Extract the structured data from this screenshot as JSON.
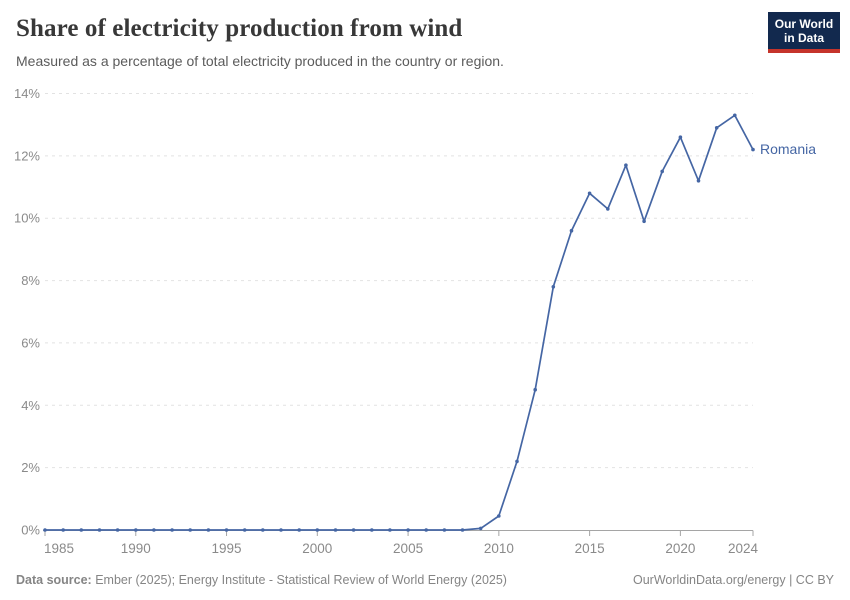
{
  "header": {
    "title": "Share of electricity production from wind",
    "subtitle": "Measured as a percentage of total electricity produced in the country or region."
  },
  "logo": {
    "line1": "Our World",
    "line2": "in Data",
    "bg_color": "#12294e",
    "accent_color": "#c5342b"
  },
  "chart_data": {
    "type": "line",
    "title": "Share of electricity production from wind",
    "xlabel": "",
    "ylabel": "",
    "xlim": [
      1985,
      2024
    ],
    "ylim": [
      0,
      14
    ],
    "grid": true,
    "y_ticks": [
      0,
      2,
      4,
      6,
      8,
      10,
      12,
      14
    ],
    "y_tick_labels": [
      "0%",
      "2%",
      "4%",
      "6%",
      "8%",
      "10%",
      "12%",
      "14%"
    ],
    "x_ticks": [
      1985,
      1990,
      1995,
      2000,
      2005,
      2010,
      2015,
      2020,
      2024
    ],
    "x_tick_labels": [
      "1985",
      "1990",
      "1995",
      "2000",
      "2005",
      "2010",
      "2015",
      "2020",
      "2024"
    ],
    "x": [
      1985,
      1986,
      1987,
      1988,
      1989,
      1990,
      1991,
      1992,
      1993,
      1994,
      1995,
      1996,
      1997,
      1998,
      1999,
      2000,
      2001,
      2002,
      2003,
      2004,
      2005,
      2006,
      2007,
      2008,
      2009,
      2010,
      2011,
      2012,
      2013,
      2014,
      2015,
      2016,
      2017,
      2018,
      2019,
      2020,
      2021,
      2022,
      2023,
      2024
    ],
    "series": [
      {
        "name": "Romania",
        "color": "#4566a4",
        "values": [
          0,
          0,
          0,
          0,
          0,
          0,
          0,
          0,
          0,
          0,
          0,
          0,
          0,
          0,
          0,
          0,
          0,
          0,
          0,
          0,
          0,
          0,
          0,
          0,
          0.05,
          0.45,
          2.2,
          4.5,
          7.8,
          9.6,
          10.8,
          10.3,
          11.7,
          9.9,
          11.5,
          12.6,
          11.2,
          12.9,
          13.3,
          12.2
        ]
      }
    ],
    "legend_position": "end-of-line-label"
  },
  "footer": {
    "source_label": "Data source:",
    "source_text": " Ember (2025); Energy Institute - Statistical Review of World Energy (2025)",
    "right_text": "OurWorldinData.org/energy | CC BY"
  },
  "style_colors": {
    "gridline": "#e2e2e2",
    "axis_line": "#a5a5a5",
    "tick_text": "#8a8a8a",
    "title_text": "#383838",
    "subtitle_text": "#5b5b5b",
    "footer_text": "#858585"
  }
}
